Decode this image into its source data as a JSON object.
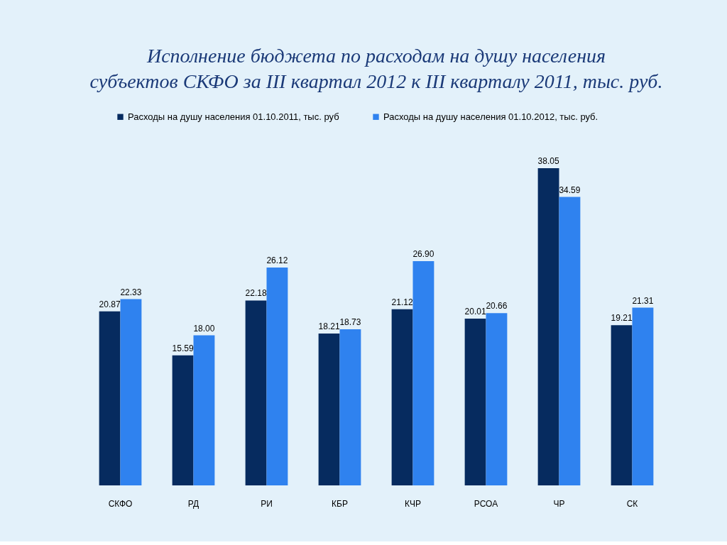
{
  "chart_data": {
    "type": "bar",
    "title": "Исполнение бюджета по расходам на душу населения\nсубъектов СКФО за III квартал 2012 к III кварталу 2011, тыс. руб.",
    "categories": [
      "СКФО",
      "РД",
      "РИ",
      "КБР",
      "КЧР",
      "РСОА",
      "ЧР",
      "СК"
    ],
    "series": [
      {
        "name": "Расходы на душу населения 01.10.2011, тыс. руб",
        "color": "#062b5f",
        "values": [
          20.87,
          15.59,
          22.18,
          18.21,
          21.12,
          20.01,
          38.05,
          19.21
        ],
        "value_labels": [
          "20.87",
          "15.59",
          "22.18",
          "18.21",
          "21.12",
          "20.01",
          "38.05",
          "19.21"
        ]
      },
      {
        "name": "Расходы на душу населения 01.10.2012, тыс. руб.",
        "color": "#2f82ef",
        "values": [
          22.33,
          18.0,
          26.12,
          18.73,
          26.9,
          20.66,
          34.59,
          21.31
        ],
        "value_labels": [
          "22.33",
          "18.00",
          "26.12",
          "18.73",
          "26.90",
          "20.66",
          "34.59",
          "21.31"
        ]
      }
    ],
    "legend": "top",
    "tick_labels": "x"
  }
}
